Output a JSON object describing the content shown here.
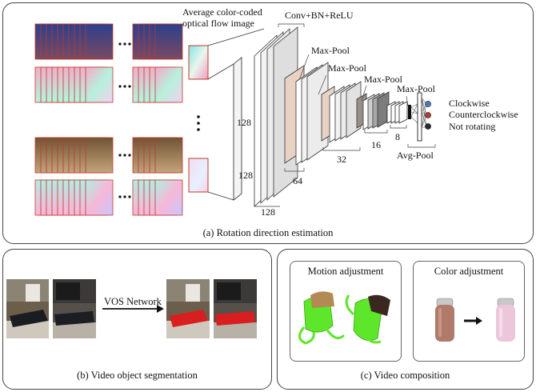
{
  "panel_a": {
    "caption": "(a) Rotation direction estimation",
    "avg_flow_title_line1": "Average color-coded",
    "avg_flow_title_line2": "optical flow image",
    "conv_label": "Conv+BN+ReLU",
    "maxpool_labels": [
      "Max-Pool",
      "Max-Pool",
      "Max-Pool",
      "Max-Pool"
    ],
    "dim_labels": [
      "128",
      "128",
      "128",
      "64",
      "32",
      "16",
      "8"
    ],
    "avgpool_label": "Avg-Pool",
    "outputs": [
      {
        "label": "Clockwise",
        "color": "#4a7bb8"
      },
      {
        "label": "Counterclockwise",
        "color": "#b83a32"
      },
      {
        "label": "Not rotating",
        "color": "#2a2a2a"
      }
    ]
  },
  "panel_b": {
    "caption": "(b) Video object segmentation",
    "network_label": "VOS Network"
  },
  "panel_c": {
    "caption": "(c) Video composition",
    "motion_title": "Motion adjustment",
    "color_title": "Color adjustment"
  },
  "colors": {
    "border": "#444444",
    "frame_border": "#c0392b",
    "layer_fill": "#e6e6e6",
    "pool_fill": "#e8d2c4",
    "segment_red": "#d81e1e",
    "green_object": "#5ee62a"
  }
}
